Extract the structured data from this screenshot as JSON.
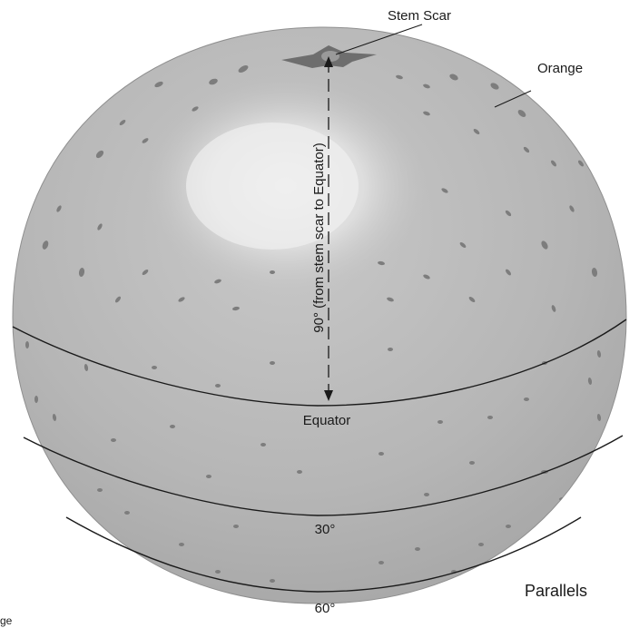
{
  "labels": {
    "stem_scar": "Stem Scar",
    "orange": "Orange",
    "meridian_arc": "90° (from stem scar to Equator)",
    "equator": "Equator",
    "parallel_30": "30°",
    "parallel_60": "60°",
    "parallels": "Parallels",
    "cropped_left": "ge"
  },
  "colors": {
    "peel": "#b4b4b4",
    "peel_dark": "#9a9a9a",
    "highlight": "#e6e6e6",
    "pores": "#7d7d7d",
    "lines": "#1a1a1a"
  }
}
